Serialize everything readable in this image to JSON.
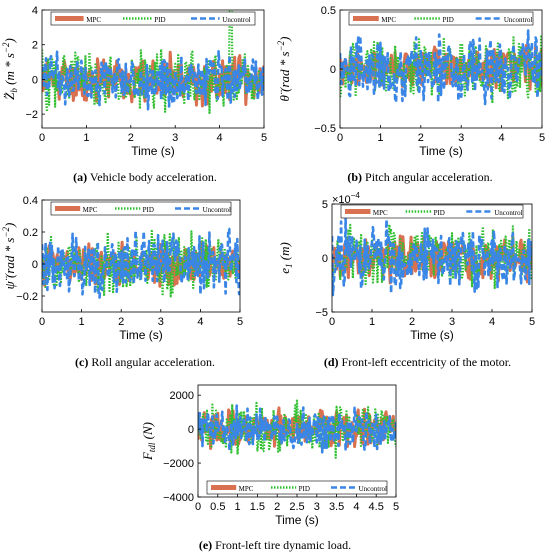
{
  "colors": {
    "mpc": "#d9704f",
    "pid": "#2fbf2f",
    "uncontrol": "#3a86e6",
    "mpc_fill": "#c9956a"
  },
  "chart_data": [
    {
      "id": "a",
      "type": "line",
      "xlabel": "Time (s)",
      "ylabel": "Z̈_b (m*s^-2)",
      "ylabel_parts": {
        "sym": "Z̈",
        "sub": "b",
        "unit_open": "(m * s",
        "exp": "−2",
        "unit_close": ")"
      },
      "xlim": [
        0,
        5
      ],
      "ylim": [
        -2.8,
        4
      ],
      "xticks": [
        0,
        1,
        2,
        3,
        4,
        5
      ],
      "yticks": [
        -2,
        0,
        2,
        4
      ],
      "legend": [
        "MPC",
        "PID",
        "Uncontrol"
      ],
      "legend_position": "top",
      "series": [
        {
          "name": "MPC",
          "amplitude": 1.6,
          "seed": 11
        },
        {
          "name": "PID",
          "amplitude": 2.2,
          "seed": 23,
          "peak": {
            "x": 4.25,
            "y": 3.9
          }
        },
        {
          "name": "Uncontrol",
          "amplitude": 1.9,
          "seed": 37
        }
      ],
      "caption_label": "(a)",
      "caption_text": " Vehicle body acceleration."
    },
    {
      "id": "b",
      "type": "line",
      "xlabel": "Time (s)",
      "ylabel": "θ̈ (rad*s^-2)",
      "ylabel_parts": {
        "sym": "θ̈",
        "sub": "",
        "unit_open": "(rad * s",
        "exp": "−2",
        "unit_close": ")"
      },
      "xlim": [
        0,
        5
      ],
      "ylim": [
        -0.5,
        0.5
      ],
      "xticks": [
        0,
        1,
        2,
        3,
        4,
        5
      ],
      "yticks": [
        -0.5,
        0,
        0.5
      ],
      "legend": [
        "MPC",
        "PID",
        "Uncontrol"
      ],
      "legend_position": "top",
      "series": [
        {
          "name": "MPC",
          "amplitude": 0.22,
          "seed": 41
        },
        {
          "name": "PID",
          "amplitude": 0.3,
          "seed": 53
        },
        {
          "name": "Uncontrol",
          "amplitude": 0.35,
          "seed": 67
        }
      ],
      "caption_label": "(b)",
      "caption_text": " Pitch angular acceleration."
    },
    {
      "id": "c",
      "type": "line",
      "xlabel": "Time (s)",
      "ylabel": "ψ̈ (rad*s^-2)",
      "ylabel_parts": {
        "sym": "ψ̈",
        "sub": "",
        "unit_open": "(rad * s",
        "exp": "−2",
        "unit_close": ")"
      },
      "xlim": [
        0,
        5
      ],
      "ylim": [
        -0.3,
        0.4
      ],
      "xticks": [
        0,
        1,
        2,
        3,
        4,
        5
      ],
      "yticks": [
        -0.2,
        0,
        0.2,
        0.4
      ],
      "legend": [
        "MPC",
        "PID",
        "Uncontrol"
      ],
      "legend_position": "top",
      "series": [
        {
          "name": "MPC",
          "amplitude": 0.15,
          "seed": 71
        },
        {
          "name": "PID",
          "amplitude": 0.22,
          "seed": 83
        },
        {
          "name": "Uncontrol",
          "amplitude": 0.26,
          "seed": 97
        }
      ],
      "caption_label": "(c)",
      "caption_text": " Roll angular acceleration."
    },
    {
      "id": "d",
      "type": "line",
      "xlabel": "Time (s)",
      "ylabel": "e_1 (m)",
      "ylabel_parts": {
        "sym": "e",
        "sub": "1",
        "unit_open": "(m)",
        "exp": "",
        "unit_close": ""
      },
      "scale_label": "×10",
      "scale_exp": "−4",
      "xlim": [
        0,
        5
      ],
      "ylim": [
        -5,
        5
      ],
      "xticks": [
        0,
        1,
        2,
        3,
        4,
        5
      ],
      "yticks": [
        -5,
        0,
        5
      ],
      "legend": [
        "MPC",
        "PID",
        "Uncontrol"
      ],
      "legend_position": "top",
      "series": [
        {
          "name": "MPC",
          "amplitude": 2.6,
          "seed": 101
        },
        {
          "name": "PID",
          "amplitude": 3.4,
          "seed": 113
        },
        {
          "name": "Uncontrol",
          "amplitude": 3.8,
          "seed": 127
        }
      ],
      "caption_label": "(d)",
      "caption_text": " Front-left eccentricity of the motor."
    },
    {
      "id": "e",
      "type": "line",
      "xlabel": "Time (s)",
      "ylabel": "F_tdl (N)",
      "ylabel_parts": {
        "sym": "F",
        "sub": "tdl",
        "unit_open": "(N)",
        "exp": "",
        "unit_close": ""
      },
      "xlim": [
        0,
        5
      ],
      "ylim": [
        -4000,
        2600
      ],
      "xticks": [
        0,
        0.5,
        1,
        1.5,
        2,
        2.5,
        3,
        3.5,
        4,
        4.5,
        5
      ],
      "yticks": [
        -4000,
        -2000,
        0,
        2000
      ],
      "legend": [
        "MPC",
        "PID",
        "Uncontrol"
      ],
      "legend_position": "bottom",
      "series": [
        {
          "name": "MPC",
          "amplitude": 1300,
          "seed": 131
        },
        {
          "name": "PID",
          "amplitude": 1700,
          "seed": 149
        },
        {
          "name": "Uncontrol",
          "amplitude": 1500,
          "seed": 157
        }
      ],
      "caption_label": "(e)",
      "caption_text": " Front-left tire dynamic load."
    }
  ]
}
